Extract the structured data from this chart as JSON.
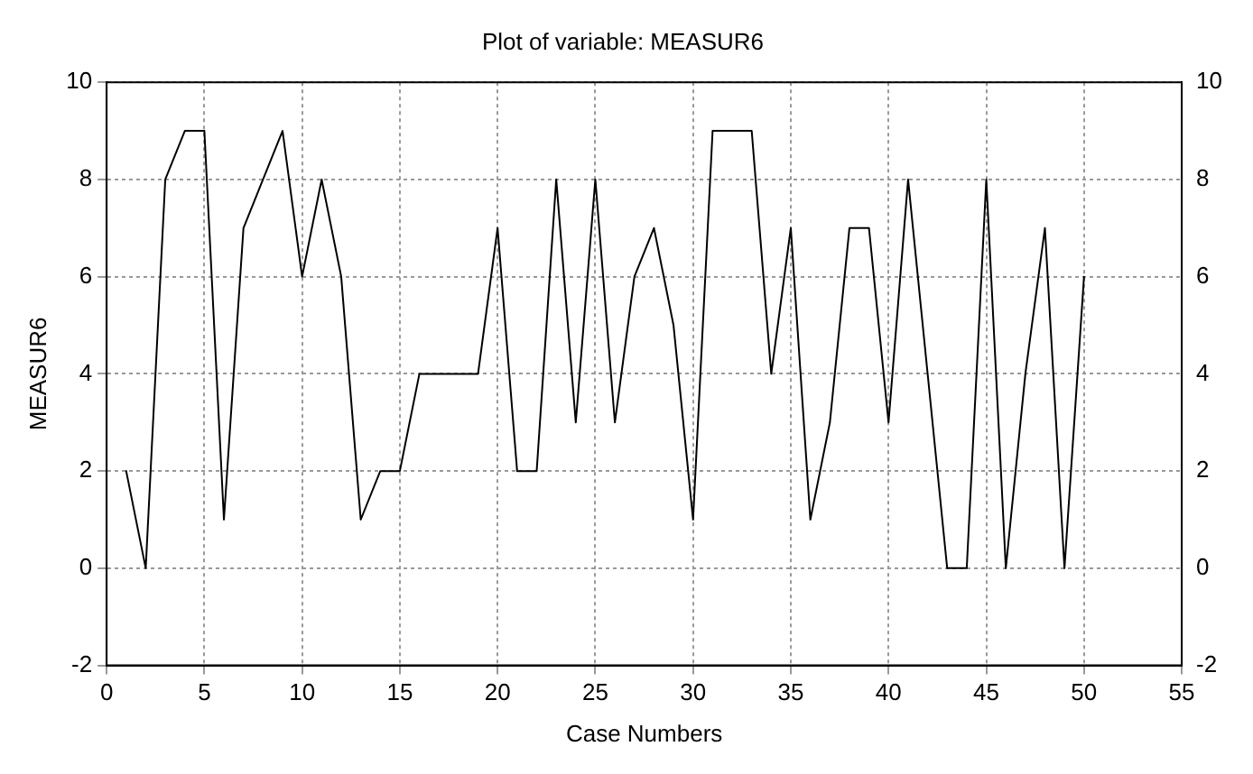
{
  "chart_data": {
    "type": "line",
    "title": "Plot of variable: MEASUR6",
    "xlabel": "Case Numbers",
    "ylabel": "MEASUR6",
    "x": [
      1,
      2,
      3,
      4,
      5,
      6,
      7,
      8,
      9,
      10,
      11,
      12,
      13,
      14,
      15,
      16,
      17,
      18,
      19,
      20,
      21,
      22,
      23,
      24,
      25,
      26,
      27,
      28,
      29,
      30,
      31,
      32,
      33,
      34,
      35,
      36,
      37,
      38,
      39,
      40,
      41,
      42,
      43,
      44,
      45,
      46,
      47,
      48,
      49,
      50
    ],
    "series": [
      {
        "color": "#000000",
        "values": [
          2,
          0,
          8,
          9,
          9,
          1,
          7,
          8,
          9,
          6,
          8,
          6,
          1,
          2,
          2,
          4,
          4,
          4,
          4,
          7,
          2,
          2,
          8,
          3,
          8,
          3,
          6,
          7,
          5,
          1,
          9,
          9,
          9,
          4,
          7,
          1,
          3,
          7,
          7,
          3,
          8,
          4,
          0,
          0,
          8,
          0,
          4,
          7,
          0,
          6
        ]
      }
    ],
    "xlim": [
      0,
      55
    ],
    "xticks": [
      0,
      5,
      10,
      15,
      20,
      25,
      30,
      35,
      40,
      45,
      50,
      55
    ],
    "ylim": [
      -2,
      10
    ],
    "yticks": [
      -2,
      0,
      2,
      4,
      6,
      8,
      10
    ],
    "y2lim": [
      -2,
      10
    ],
    "y2ticks": [
      -2,
      0,
      2,
      4,
      6,
      8,
      10
    ],
    "grid": true,
    "legend": false,
    "marker": "none",
    "line_style": "solid"
  }
}
